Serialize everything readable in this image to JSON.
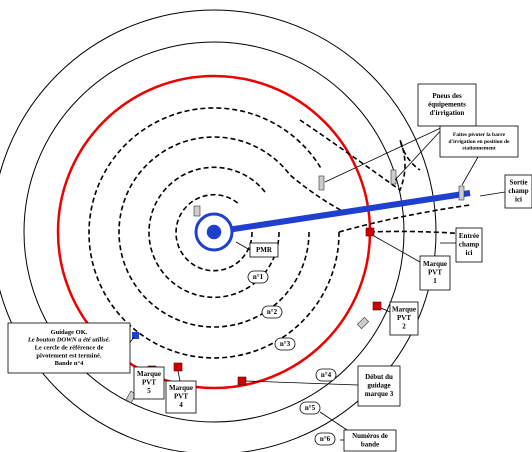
{
  "pmr": "PMR",
  "band_labels": [
    "n°1",
    "n°2",
    "n°3",
    "n°4",
    "n°5",
    "n°6"
  ],
  "callouts": [
    {
      "lines": [
        "Pneus des",
        "équipements",
        "d'irrigation"
      ]
    },
    {
      "lines": [
        "Faites pivoter la barre",
        "d'irrigation en position de",
        "stationnement"
      ]
    },
    {
      "lines": [
        "Sortie",
        "champ",
        "ici"
      ]
    },
    {
      "lines": [
        "Entrée",
        "champ",
        "ici"
      ]
    },
    {
      "lines": [
        "Marque",
        "PVT",
        "1"
      ]
    },
    {
      "lines": [
        "Marque",
        "PVT",
        "2"
      ]
    },
    {
      "lines": [
        "Début du",
        "guidage",
        "marque 3"
      ]
    },
    {
      "lines": [
        "Numéros de",
        "bande"
      ]
    },
    {
      "lines": [
        "Guidage OK.",
        "Le bouton DOWN a été utilisé.",
        "Le cercle de référence de",
        "pivotement est terminé.",
        "Bande n°4"
      ]
    },
    {
      "lines": [
        "Marque",
        "PVT",
        "5"
      ]
    },
    {
      "lines": [
        "Marque",
        "PVT",
        "4"
      ]
    }
  ]
}
